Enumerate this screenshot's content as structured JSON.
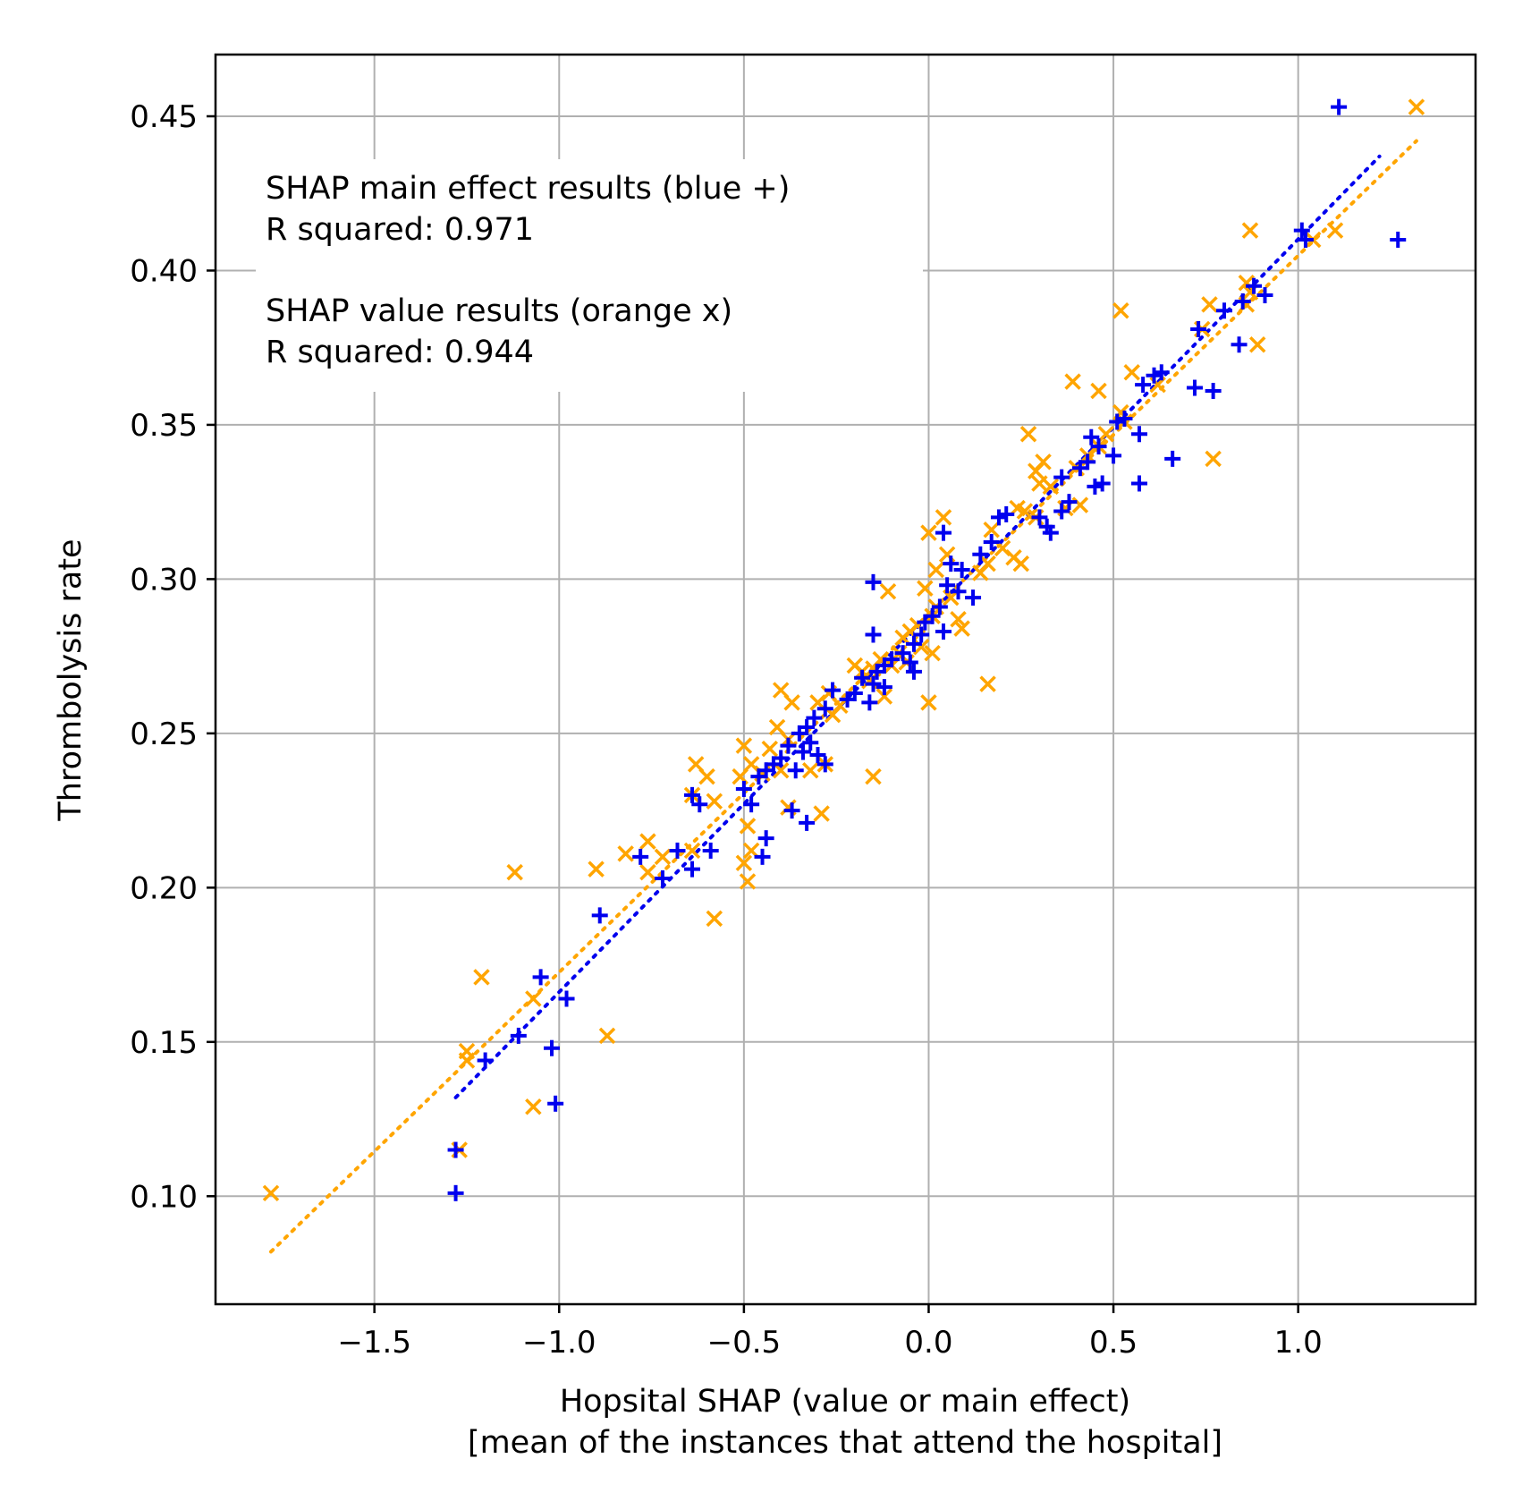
{
  "chart_data": {
    "type": "scatter",
    "title": "",
    "xlabel": "Hopsital SHAP (value or main effect)",
    "xlabel_line2": "[mean of the instances that attend the hospital]",
    "ylabel": "Thrombolysis rate",
    "xlim": [
      -1.93,
      1.48
    ],
    "ylim": [
      0.065,
      0.47
    ],
    "grid": true,
    "x_ticks": [
      -1.5,
      -1.0,
      -0.5,
      0.0,
      0.5,
      1.0
    ],
    "x_tick_labels": [
      "−1.5",
      "−1.0",
      "−0.5",
      "0.0",
      "0.5",
      "1.0"
    ],
    "y_ticks": [
      0.1,
      0.15,
      0.2,
      0.25,
      0.3,
      0.35,
      0.4,
      0.45
    ],
    "y_tick_labels": [
      "0.10",
      "0.15",
      "0.20",
      "0.25",
      "0.30",
      "0.35",
      "0.40",
      "0.45"
    ],
    "annotations": [
      "SHAP main effect results (blue +)",
      "R squared: 0.971",
      "SHAP value results (orange x)",
      "R squared: 0.944"
    ],
    "colors": {
      "main_effect": "#0000ee",
      "shap_value": "#ffa500"
    },
    "series": [
      {
        "name": "SHAP main effect results (blue +)",
        "marker": "+",
        "color": "#0000ee",
        "fit_line": {
          "x": [
            -1.28,
            1.22
          ],
          "y": [
            0.132,
            0.437
          ]
        },
        "points": [
          [
            1.11,
            0.453
          ],
          [
            1.27,
            0.41
          ],
          [
            1.01,
            0.413
          ],
          [
            1.02,
            0.41
          ],
          [
            0.91,
            0.392
          ],
          [
            0.88,
            0.395
          ],
          [
            0.85,
            0.39
          ],
          [
            0.8,
            0.387
          ],
          [
            0.73,
            0.381
          ],
          [
            0.84,
            0.376
          ],
          [
            0.61,
            0.366
          ],
          [
            0.63,
            0.367
          ],
          [
            0.58,
            0.363
          ],
          [
            0.72,
            0.362
          ],
          [
            0.77,
            0.361
          ],
          [
            0.57,
            0.347
          ],
          [
            0.53,
            0.352
          ],
          [
            0.51,
            0.351
          ],
          [
            0.44,
            0.346
          ],
          [
            0.46,
            0.343
          ],
          [
            0.5,
            0.34
          ],
          [
            0.43,
            0.338
          ],
          [
            0.41,
            0.336
          ],
          [
            0.36,
            0.333
          ],
          [
            0.45,
            0.33
          ],
          [
            0.47,
            0.331
          ],
          [
            0.57,
            0.331
          ],
          [
            0.66,
            0.339
          ],
          [
            0.38,
            0.325
          ],
          [
            0.36,
            0.322
          ],
          [
            0.3,
            0.32
          ],
          [
            0.32,
            0.317
          ],
          [
            0.33,
            0.315
          ],
          [
            0.19,
            0.32
          ],
          [
            0.21,
            0.321
          ],
          [
            0.17,
            0.312
          ],
          [
            0.14,
            0.308
          ],
          [
            0.04,
            0.315
          ],
          [
            0.06,
            0.305
          ],
          [
            0.09,
            0.303
          ],
          [
            0.05,
            0.298
          ],
          [
            0.12,
            0.294
          ],
          [
            0.08,
            0.296
          ],
          [
            0.03,
            0.291
          ],
          [
            0.01,
            0.288
          ],
          [
            -0.01,
            0.286
          ],
          [
            0.04,
            0.283
          ],
          [
            -0.02,
            0.282
          ],
          [
            -0.04,
            0.279
          ],
          [
            -0.07,
            0.276
          ],
          [
            -0.05,
            0.273
          ],
          [
            -0.1,
            0.274
          ],
          [
            -0.12,
            0.272
          ],
          [
            -0.04,
            0.27
          ],
          [
            -0.15,
            0.299
          ],
          [
            -0.15,
            0.282
          ],
          [
            -0.14,
            0.27
          ],
          [
            -0.18,
            0.268
          ],
          [
            -0.15,
            0.266
          ],
          [
            -0.12,
            0.265
          ],
          [
            -0.2,
            0.263
          ],
          [
            -0.16,
            0.26
          ],
          [
            -0.22,
            0.261
          ],
          [
            -0.26,
            0.264
          ],
          [
            -0.28,
            0.258
          ],
          [
            -0.31,
            0.255
          ],
          [
            -0.33,
            0.252
          ],
          [
            -0.35,
            0.25
          ],
          [
            -0.32,
            0.247
          ],
          [
            -0.34,
            0.244
          ],
          [
            -0.38,
            0.246
          ],
          [
            -0.4,
            0.242
          ],
          [
            -0.42,
            0.24
          ],
          [
            -0.44,
            0.238
          ],
          [
            -0.36,
            0.238
          ],
          [
            -0.3,
            0.243
          ],
          [
            -0.28,
            0.24
          ],
          [
            -0.46,
            0.236
          ],
          [
            -0.5,
            0.232
          ],
          [
            -0.48,
            0.227
          ],
          [
            -0.37,
            0.225
          ],
          [
            -0.33,
            0.221
          ],
          [
            -0.44,
            0.216
          ],
          [
            -0.45,
            0.21
          ],
          [
            -0.64,
            0.23
          ],
          [
            -0.62,
            0.227
          ],
          [
            -0.68,
            0.212
          ],
          [
            -0.59,
            0.212
          ],
          [
            -0.64,
            0.206
          ],
          [
            -0.78,
            0.21
          ],
          [
            -0.72,
            0.203
          ],
          [
            -0.89,
            0.191
          ],
          [
            -1.05,
            0.171
          ],
          [
            -0.98,
            0.164
          ],
          [
            -1.11,
            0.152
          ],
          [
            -1.02,
            0.148
          ],
          [
            -1.2,
            0.144
          ],
          [
            -1.01,
            0.13
          ],
          [
            -1.28,
            0.115
          ],
          [
            -1.28,
            0.101
          ]
        ]
      },
      {
        "name": "SHAP value results (orange x)",
        "marker": "x",
        "color": "#ffa500",
        "fit_line": {
          "x": [
            -1.78,
            1.32
          ],
          "y": [
            0.082,
            0.442
          ]
        },
        "points": [
          [
            1.32,
            0.453
          ],
          [
            0.87,
            0.413
          ],
          [
            1.1,
            0.413
          ],
          [
            1.04,
            0.41
          ],
          [
            0.86,
            0.396
          ],
          [
            0.87,
            0.393
          ],
          [
            0.86,
            0.389
          ],
          [
            0.76,
            0.389
          ],
          [
            0.74,
            0.381
          ],
          [
            0.52,
            0.387
          ],
          [
            0.89,
            0.376
          ],
          [
            0.55,
            0.367
          ],
          [
            0.39,
            0.364
          ],
          [
            0.46,
            0.361
          ],
          [
            0.62,
            0.363
          ],
          [
            0.52,
            0.354
          ],
          [
            0.53,
            0.351
          ],
          [
            0.27,
            0.347
          ],
          [
            0.48,
            0.347
          ],
          [
            0.46,
            0.343
          ],
          [
            0.43,
            0.34
          ],
          [
            0.4,
            0.336
          ],
          [
            0.31,
            0.338
          ],
          [
            0.29,
            0.335
          ],
          [
            0.3,
            0.331
          ],
          [
            0.33,
            0.33
          ],
          [
            0.77,
            0.339
          ],
          [
            0.37,
            0.323
          ],
          [
            0.41,
            0.324
          ],
          [
            0.24,
            0.323
          ],
          [
            0.26,
            0.322
          ],
          [
            0.29,
            0.32
          ],
          [
            0.04,
            0.32
          ],
          [
            0.0,
            0.315
          ],
          [
            0.17,
            0.316
          ],
          [
            0.2,
            0.31
          ],
          [
            0.16,
            0.305
          ],
          [
            0.25,
            0.305
          ],
          [
            0.23,
            0.307
          ],
          [
            0.14,
            0.302
          ],
          [
            0.05,
            0.308
          ],
          [
            0.02,
            0.303
          ],
          [
            -0.01,
            0.297
          ],
          [
            -0.11,
            0.296
          ],
          [
            0.06,
            0.294
          ],
          [
            0.02,
            0.291
          ],
          [
            0.01,
            0.288
          ],
          [
            0.08,
            0.287
          ],
          [
            0.09,
            0.284
          ],
          [
            -0.03,
            0.285
          ],
          [
            -0.05,
            0.283
          ],
          [
            -0.07,
            0.281
          ],
          [
            -0.02,
            0.278
          ],
          [
            -0.08,
            0.276
          ],
          [
            -0.1,
            0.272
          ],
          [
            -0.13,
            0.274
          ],
          [
            -0.15,
            0.271
          ],
          [
            -0.18,
            0.27
          ],
          [
            -0.2,
            0.272
          ],
          [
            -0.16,
            0.267
          ],
          [
            -0.06,
            0.273
          ],
          [
            0.01,
            0.276
          ],
          [
            0.16,
            0.266
          ],
          [
            0.0,
            0.26
          ],
          [
            -0.12,
            0.262
          ],
          [
            -0.24,
            0.259
          ],
          [
            -0.27,
            0.263
          ],
          [
            -0.3,
            0.26
          ],
          [
            -0.26,
            0.256
          ],
          [
            -0.4,
            0.264
          ],
          [
            -0.37,
            0.26
          ],
          [
            -0.41,
            0.252
          ],
          [
            -0.38,
            0.248
          ],
          [
            -0.43,
            0.245
          ],
          [
            -0.5,
            0.246
          ],
          [
            -0.48,
            0.24
          ],
          [
            -0.45,
            0.237
          ],
          [
            -0.4,
            0.238
          ],
          [
            -0.32,
            0.238
          ],
          [
            -0.28,
            0.24
          ],
          [
            -0.15,
            0.236
          ],
          [
            -0.29,
            0.224
          ],
          [
            -0.38,
            0.226
          ],
          [
            -0.51,
            0.236
          ],
          [
            -0.63,
            0.24
          ],
          [
            -0.6,
            0.236
          ],
          [
            -0.64,
            0.23
          ],
          [
            -0.58,
            0.228
          ],
          [
            -0.49,
            0.22
          ],
          [
            -0.48,
            0.212
          ],
          [
            -0.5,
            0.208
          ],
          [
            -0.49,
            0.202
          ],
          [
            -0.76,
            0.215
          ],
          [
            -0.82,
            0.211
          ],
          [
            -0.72,
            0.21
          ],
          [
            -0.76,
            0.205
          ],
          [
            -0.64,
            0.212
          ],
          [
            -0.58,
            0.19
          ],
          [
            -0.9,
            0.206
          ],
          [
            -1.12,
            0.205
          ],
          [
            -1.07,
            0.164
          ],
          [
            -1.21,
            0.171
          ],
          [
            -0.87,
            0.152
          ],
          [
            -1.25,
            0.147
          ],
          [
            -1.25,
            0.144
          ],
          [
            -1.07,
            0.129
          ],
          [
            -1.27,
            0.115
          ],
          [
            -1.78,
            0.101
          ]
        ]
      }
    ]
  }
}
